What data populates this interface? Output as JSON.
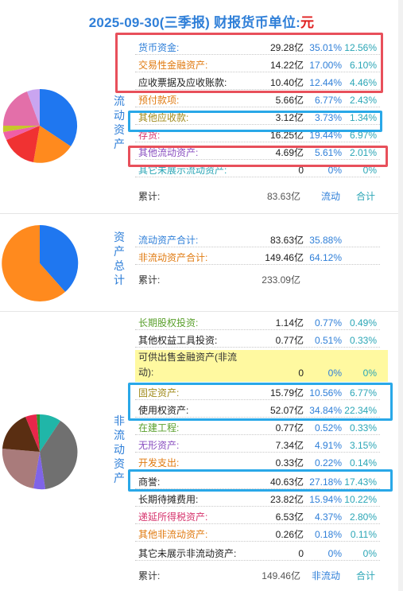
{
  "header": {
    "title": "2025-09-30(三季报)  财报货币单位:",
    "unit": "元"
  },
  "current": {
    "label": "流动资产",
    "rows": [
      {
        "name": "货币资金:",
        "value": "29.28亿",
        "p1": "35.01%",
        "p2": "12.56%",
        "color": "c-blue"
      },
      {
        "name": "交易性金融资产:",
        "value": "14.22亿",
        "p1": "17.00%",
        "p2": "6.10%",
        "color": "c-orange"
      },
      {
        "name": "应收票据及应收账款:",
        "value": "10.40亿",
        "p1": "12.44%",
        "p2": "4.46%",
        "color": "c-dark"
      },
      {
        "name": "预付款项:",
        "value": "5.66亿",
        "p1": "6.77%",
        "p2": "2.43%",
        "color": "c-orange"
      },
      {
        "name": "其他应收款:",
        "value": "3.12亿",
        "p1": "3.73%",
        "p2": "1.34%",
        "color": "c-olive"
      },
      {
        "name": "存货:",
        "value": "16.25亿",
        "p1": "19.44%",
        "p2": "6.97%",
        "color": "c-pink"
      },
      {
        "name": "其他流动资产:",
        "value": "4.69亿",
        "p1": "5.61%",
        "p2": "2.01%",
        "color": "c-purple"
      },
      {
        "name": "其它未展示流动资产:",
        "value": "0",
        "p1": "0%",
        "p2": "0%",
        "color": "c-teal"
      }
    ],
    "total": {
      "name": "累计:",
      "value": "83.63亿",
      "kind": "流动",
      "sum": "合计"
    }
  },
  "assets": {
    "label": "资产总计",
    "rows": [
      {
        "name": "流动资产合计:",
        "value": "83.63亿",
        "p1": "35.88%",
        "color": "c-blue"
      },
      {
        "name": "非流动资产合计:",
        "value": "149.46亿",
        "p1": "64.12%",
        "color": "c-orange"
      }
    ],
    "total": {
      "name": "累计:",
      "value": "233.09亿"
    }
  },
  "noncurrent": {
    "label": "非流动资产",
    "rows": [
      {
        "name": "长期股权投资:",
        "value": "1.14亿",
        "p1": "0.77%",
        "p2": "0.49%",
        "color": "c-green"
      },
      {
        "name": "其他权益工具投资:",
        "value": "0.77亿",
        "p1": "0.51%",
        "p2": "0.33%",
        "color": "c-dark"
      },
      {
        "name": "固定资产:",
        "value": "15.79亿",
        "p1": "10.56%",
        "p2": "6.77%",
        "color": "c-olive"
      },
      {
        "name": "使用权资产:",
        "value": "52.07亿",
        "p1": "34.84%",
        "p2": "22.34%",
        "color": "c-dark"
      },
      {
        "name": "在建工程:",
        "value": "0.77亿",
        "p1": "0.52%",
        "p2": "0.33%",
        "color": "c-green"
      },
      {
        "name": "无形资产:",
        "value": "7.34亿",
        "p1": "4.91%",
        "p2": "3.15%",
        "color": "c-purple"
      },
      {
        "name": "开发支出:",
        "value": "0.33亿",
        "p1": "0.22%",
        "p2": "0.14%",
        "color": "c-orange"
      },
      {
        "name": "商誉:",
        "value": "40.63亿",
        "p1": "27.18%",
        "p2": "17.43%",
        "color": "c-dark"
      },
      {
        "name": "长期待摊费用:",
        "value": "23.82亿",
        "p1": "15.94%",
        "p2": "10.22%",
        "color": "c-dark"
      },
      {
        "name": "递延所得税资产:",
        "value": "6.53亿",
        "p1": "4.37%",
        "p2": "2.80%",
        "color": "c-pink"
      },
      {
        "name": "其他非流动资产:",
        "value": "0.26亿",
        "p1": "0.18%",
        "p2": "0.11%",
        "color": "c-orange"
      },
      {
        "name": "其它未展示非流动资产:",
        "value": "0",
        "p1": "0%",
        "p2": "0%",
        "color": "c-dark"
      }
    ],
    "available": {
      "line1": "可供出售金融资产(非流",
      "line2": "动):",
      "value": "0",
      "p1": "0%",
      "p2": "0%"
    },
    "total": {
      "name": "累计:",
      "value": "149.46亿",
      "kind": "非流动",
      "sum": "合计"
    }
  },
  "colors": {
    "blue": "#1f77f0",
    "orange": "#ff8a1e",
    "red": "#f03232",
    "pink": "#ef5fa7",
    "olive": "#c7c72a",
    "lightpurple": "#c9a5f0",
    "darkred": "#7a1e12",
    "teal": "#20b6a8",
    "grey": "#707070",
    "mauve": "#a97b7b",
    "violet": "#7f64e8",
    "crimson": "#e8264a"
  }
}
